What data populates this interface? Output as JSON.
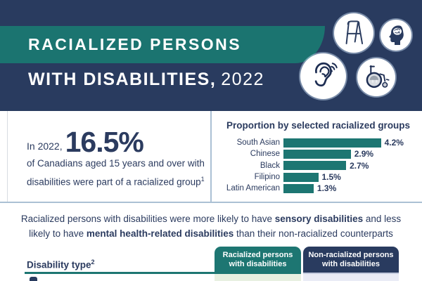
{
  "header": {
    "title_line1": "RACIALIZED PERSONS",
    "title_line2_bold": "WITH DISABILITIES,",
    "title_line2_year": "2022",
    "icons": [
      "walker-icon",
      "head-brain-icon",
      "hearing-ear-icon",
      "wheelchair-icon"
    ]
  },
  "stat": {
    "prefix": "In 2022,",
    "value": "16.5%",
    "line1": "of Canadians aged 15 years and over with",
    "line2": "disabilities were part of a racialized group",
    "footnote_sup": "1"
  },
  "chart_data": {
    "type": "bar",
    "orientation": "horizontal",
    "title": "Proportion by selected racialized groups",
    "categories": [
      "South Asian",
      "Chinese",
      "Black",
      "Filipino",
      "Latin American"
    ],
    "values": [
      4.2,
      2.9,
      2.7,
      1.5,
      1.3
    ],
    "value_labels": [
      "4.2%",
      "2.9%",
      "2.7%",
      "1.5%",
      "1.3%"
    ],
    "unit": "%",
    "xlim": [
      0,
      4.5
    ],
    "grid": false,
    "legend": "none",
    "bar_color": "#1d7672"
  },
  "highlight_paragraph": {
    "lines": [
      [
        {
          "text": "Racialized persons with disabilities were more likely to have ",
          "bold": false
        },
        {
          "text": "sensory disabilities",
          "bold": true
        },
        {
          "text": " and less",
          "bold": false
        }
      ],
      [
        {
          "text": "likely to have ",
          "bold": false
        },
        {
          "text": "mental health-related disabilities",
          "bold": true
        },
        {
          "text": " than their non-racialized counterparts",
          "bold": false
        }
      ]
    ]
  },
  "table": {
    "row_header_label": "Disability type",
    "row_header_sup": "2",
    "col1_line1": "Racialized persons",
    "col1_line2": "with disabilities",
    "col2_line1": "Non-racialized persons",
    "col2_line2": "with disabilities"
  },
  "colors": {
    "navy": "#293b5f",
    "teal": "#1b7470",
    "bar_teal": "#1d7672",
    "light_blue_rule": "#abc0d4",
    "cell_green": "#e8f0e1",
    "cell_lavender": "#eaecf6"
  }
}
